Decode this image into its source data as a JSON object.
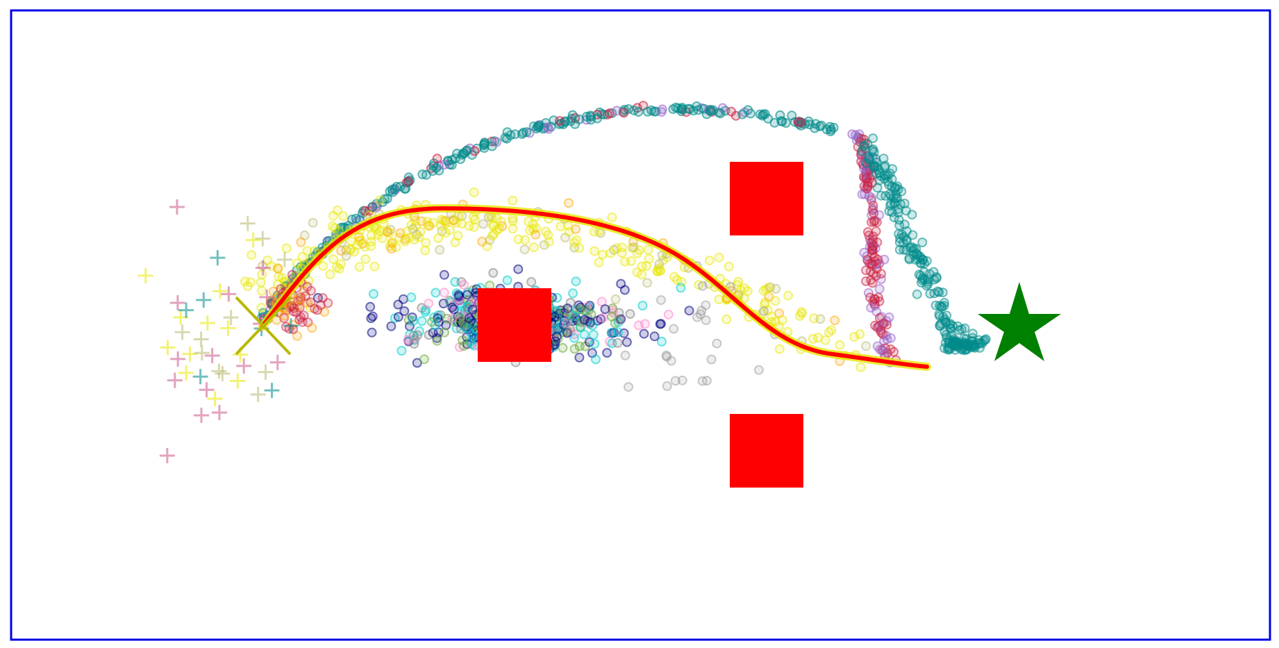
{
  "scene": {
    "description_free": true,
    "border_color": "#0000e6",
    "background": "#ffffff",
    "obstacle_color": "#ff0000",
    "goal_color": "#008000",
    "start_marker_color": "#b8b800",
    "planned_path_color": "#ff0000",
    "planned_path_outline_color": "#e6e600",
    "obstacles": [
      {
        "id": "obstacle-center"
      },
      {
        "id": "obstacle-top-right"
      },
      {
        "id": "obstacle-bottom-right"
      }
    ],
    "sample_clusters": [
      {
        "name": "upper-arc",
        "color": "#008b8b"
      },
      {
        "name": "middle-yellow",
        "color": "#e8e800"
      },
      {
        "name": "center-blob",
        "color": "#000080"
      },
      {
        "name": "right-descent",
        "color": "#cc2244"
      }
    ]
  }
}
